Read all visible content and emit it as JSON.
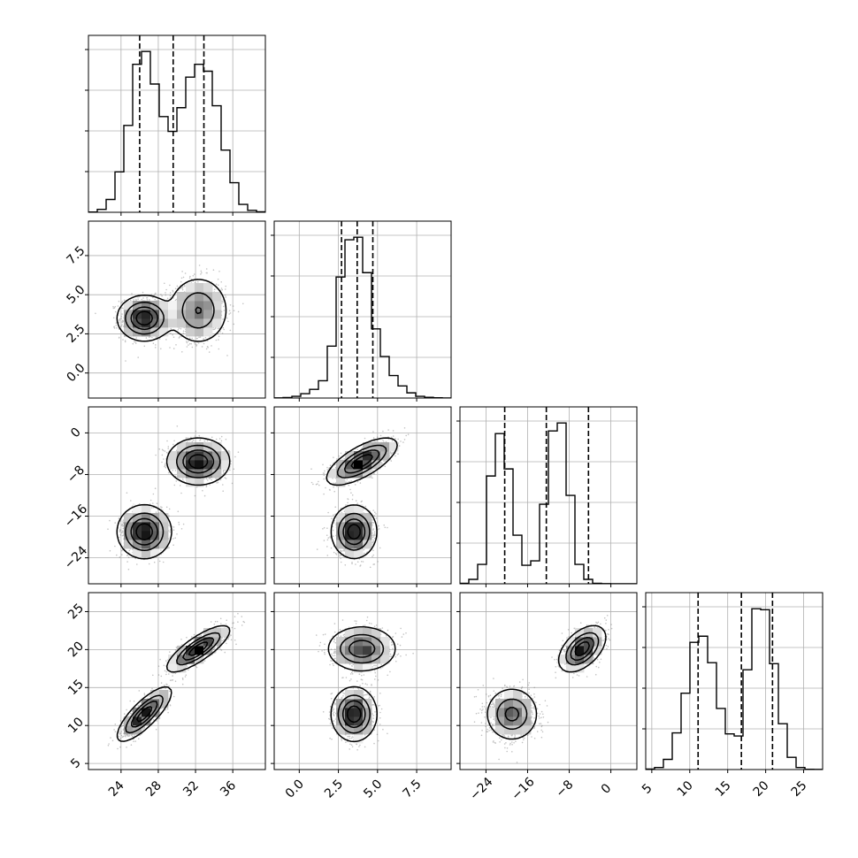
{
  "chart_data": {
    "type": "corner",
    "parameters": [
      "",
      "",
      "",
      ""
    ],
    "ranges": [
      [
        20.5,
        39.5
      ],
      [
        -1.6,
        9.7
      ],
      [
        -29,
        5
      ],
      [
        4.2,
        27.5
      ]
    ],
    "ticks": [
      {
        "values": [
          24,
          28,
          32,
          36
        ],
        "labels": [
          "24",
          "28",
          "32",
          "36"
        ]
      },
      {
        "values": [
          0,
          2.5,
          5,
          7.5
        ],
        "labels": [
          "0.0",
          "2.5",
          "5.0",
          "7.5"
        ]
      },
      {
        "values": [
          -24,
          -16,
          -8,
          0
        ],
        "labels": [
          "−24",
          "−16",
          "−8",
          "0"
        ]
      },
      {
        "values": [
          5,
          10,
          15,
          20,
          25
        ],
        "labels": [
          "5",
          "10",
          "15",
          "20",
          "25"
        ]
      }
    ],
    "quantiles": [
      [
        26.0,
        29.6,
        32.9
      ],
      [
        2.7,
        3.7,
        4.7
      ],
      [
        -20.4,
        -12.4,
        -4.3
      ],
      [
        11.1,
        16.8,
        20.9
      ]
    ],
    "histograms": [
      {
        "bin_start": 20.5,
        "bin_width": 0.95,
        "counts": [
          0.3,
          3,
          13,
          41,
          88,
          150,
          163,
          130,
          97,
          82,
          106,
          137,
          150,
          143,
          108,
          63,
          30,
          8,
          2,
          0.5
        ]
      },
      {
        "bin_start": -1.6,
        "bin_width": 0.565,
        "counts": [
          0.2,
          0.5,
          2,
          5,
          10,
          20,
          60,
          140,
          183,
          186,
          145,
          80,
          48,
          26,
          14,
          6,
          2,
          0.8,
          0.3,
          0.1
        ]
      },
      {
        "bin_start": -29,
        "bin_width": 1.7,
        "counts": [
          0.5,
          5,
          22,
          122,
          170,
          130,
          55,
          21,
          26,
          90,
          173,
          182,
          100,
          22,
          5,
          0.5,
          0.2,
          0.1,
          0.1,
          0.1
        ]
      },
      {
        "bin_start": 4.2,
        "bin_width": 1.165,
        "counts": [
          0.5,
          2,
          10,
          36,
          75,
          125,
          131,
          105,
          60,
          35,
          33,
          98,
          158,
          157,
          104,
          45,
          12,
          2,
          0.3,
          0.1
        ]
      }
    ],
    "clusters": [
      {
        "weight": 0.5,
        "mean": [
          26.5,
          3.5,
          -19,
          11.5
        ],
        "sd": [
          1.3,
          0.65,
          2.3,
          1.6
        ],
        "corr": [
          [
            0,
            3,
            0.8
          ]
        ]
      },
      {
        "weight": 0.5,
        "mean": [
          32.3,
          4.0,
          -5.5,
          20.1
        ],
        "sd": [
          1.5,
          1.0,
          2.0,
          1.35
        ],
        "corr": [
          [
            0,
            3,
            0.8
          ],
          [
            1,
            2,
            0.7
          ],
          [
            2,
            3,
            0.5
          ]
        ]
      }
    ]
  }
}
